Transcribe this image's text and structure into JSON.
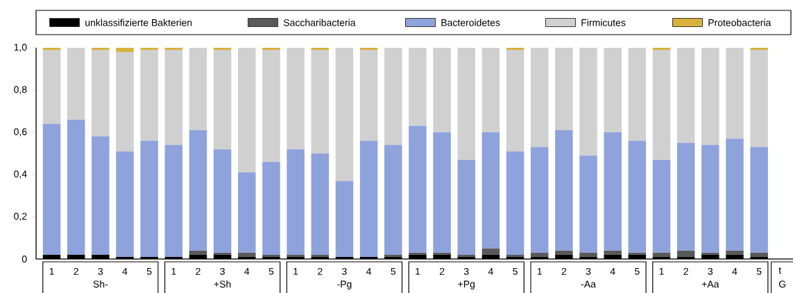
{
  "chart_data": {
    "type": "bar",
    "stacked": true,
    "legend": "top",
    "categories": [
      "1",
      "2",
      "3",
      "4",
      "5",
      "1",
      "2",
      "3",
      "4",
      "5",
      "1",
      "2",
      "3",
      "4",
      "5",
      "1",
      "2",
      "3",
      "4",
      "5",
      "1",
      "2",
      "3",
      "4",
      "5",
      "1",
      "2",
      "3",
      "4",
      "5"
    ],
    "ylim": [
      0,
      1
    ],
    "yticks": [
      {
        "value": 0,
        "label": "0"
      },
      {
        "value": 0.2,
        "label": "0,2"
      },
      {
        "value": 0.4,
        "label": "0,4"
      },
      {
        "value": 0.6,
        "label": "0,6"
      },
      {
        "value": 0.8,
        "label": "0,8"
      },
      {
        "value": 1,
        "label": "1,0"
      }
    ],
    "series": [
      {
        "name": "unklassifizierte Bakterien",
        "color": "#000000",
        "values": [
          0.02,
          0.02,
          0.02,
          0.01,
          0.01,
          0.01,
          0.02,
          0.02,
          0.01,
          0.01,
          0.01,
          0.01,
          0.01,
          0.01,
          0.01,
          0.02,
          0.02,
          0.01,
          0.02,
          0.01,
          0.01,
          0.02,
          0.01,
          0.02,
          0.02,
          0.01,
          0.01,
          0.02,
          0.02,
          0.01
        ]
      },
      {
        "name": "Saccharibacteria",
        "color": "#595959",
        "values": [
          0,
          0,
          0,
          0,
          0,
          0,
          0.02,
          0.01,
          0.02,
          0.01,
          0.01,
          0.01,
          0,
          0,
          0.01,
          0.01,
          0.01,
          0.01,
          0.03,
          0.01,
          0.02,
          0.02,
          0.02,
          0.02,
          0.01,
          0.02,
          0.03,
          0.01,
          0.02,
          0.02
        ]
      },
      {
        "name": "Bacteroidetes",
        "color": "#8ea2dc",
        "values": [
          0.62,
          0.64,
          0.56,
          0.5,
          0.55,
          0.53,
          0.57,
          0.49,
          0.38,
          0.44,
          0.5,
          0.48,
          0.36,
          0.55,
          0.52,
          0.6,
          0.57,
          0.45,
          0.55,
          0.49,
          0.5,
          0.57,
          0.46,
          0.56,
          0.53,
          0.44,
          0.51,
          0.51,
          0.53,
          0.5
        ]
      },
      {
        "name": "Firmicutes",
        "color": "#d0d0d0",
        "values": [
          0.35,
          0.34,
          0.41,
          0.47,
          0.43,
          0.45,
          0.39,
          0.47,
          0.59,
          0.53,
          0.48,
          0.49,
          0.63,
          0.43,
          0.46,
          0.37,
          0.4,
          0.53,
          0.4,
          0.48,
          0.47,
          0.39,
          0.51,
          0.4,
          0.44,
          0.52,
          0.45,
          0.46,
          0.43,
          0.46
        ]
      },
      {
        "name": "Proteobacteria",
        "color": "#d9b23e",
        "values": [
          0.01,
          0,
          0.01,
          0.02,
          0.01,
          0.01,
          0,
          0.01,
          0,
          0.01,
          0,
          0.01,
          0,
          0.01,
          0,
          0,
          0,
          0,
          0,
          0.01,
          0,
          0,
          0,
          0,
          0,
          0.01,
          0,
          0,
          0,
          0.01
        ]
      }
    ],
    "annotations": [
      "Sh-",
      "+Sh",
      "-Pg",
      "+Pg",
      "-Aa",
      "+Aa",
      "t",
      "G"
    ]
  }
}
